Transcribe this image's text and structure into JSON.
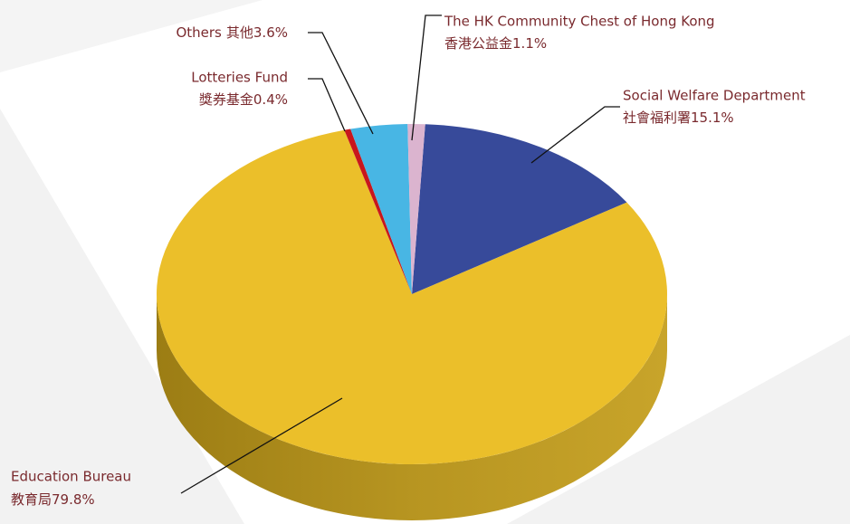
{
  "chart_data": {
    "type": "pie",
    "categories": [
      "Social Welfare Department",
      "Education Bureau",
      "Lotteries Fund",
      "Others",
      "The HK Community Chest of Hong Kong"
    ],
    "categories_zh": [
      "社會福利署",
      "教育局",
      "獎券基金",
      "其他",
      "香港公益金"
    ],
    "values": [
      15.1,
      79.8,
      0.4,
      3.6,
      1.1
    ],
    "value_labels": [
      "15.1%",
      "79.8%",
      "0.4%",
      "3.6%",
      "1.1%"
    ],
    "colors": [
      "#374a9a",
      "#ebbf2a",
      "#c8161d",
      "#48b6e4",
      "#dbb4cf"
    ]
  }
}
